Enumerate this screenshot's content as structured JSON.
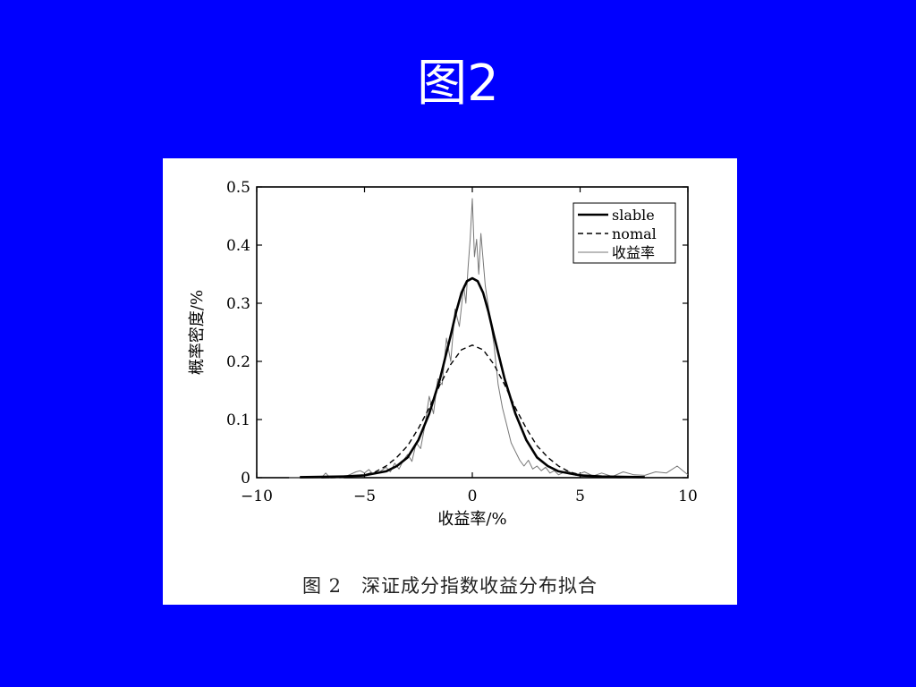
{
  "slide": {
    "title": "图2"
  },
  "figure": {
    "caption_label": "图 2",
    "caption_text": "深证成分指数收益分布拟合"
  },
  "chart_data": {
    "type": "line",
    "xlabel": "收益率/%",
    "ylabel": "概率密度/%",
    "xlim": [
      -10,
      10
    ],
    "ylim": [
      0,
      0.5
    ],
    "x_ticks": [
      -10,
      -5,
      0,
      5,
      10
    ],
    "x_tick_labels": [
      "−10",
      "−5",
      "0",
      "5",
      "10"
    ],
    "y_ticks": [
      0,
      0.1,
      0.2,
      0.3,
      0.4,
      0.5
    ],
    "y_tick_labels": [
      "0",
      "0.1",
      "0.2",
      "0.3",
      "0.4",
      "0.5"
    ],
    "grid": false,
    "legend_position": "top-right",
    "colors": {
      "axis": "#000000",
      "stable": "#000000",
      "normal": "#000000",
      "empirical": "#777777"
    },
    "series": [
      {
        "name": "slable",
        "style": "solid-thick",
        "x": [
          -8,
          -6,
          -5,
          -4,
          -3.5,
          -3,
          -2.5,
          -2,
          -1.5,
          -1,
          -0.75,
          -0.5,
          -0.25,
          0,
          0.25,
          0.5,
          0.75,
          1,
          1.5,
          2,
          2.5,
          3,
          3.5,
          4,
          5,
          6,
          8
        ],
        "y": [
          0.001,
          0.002,
          0.004,
          0.011,
          0.02,
          0.035,
          0.065,
          0.11,
          0.17,
          0.245,
          0.285,
          0.318,
          0.338,
          0.343,
          0.338,
          0.318,
          0.285,
          0.245,
          0.17,
          0.11,
          0.065,
          0.035,
          0.02,
          0.011,
          0.004,
          0.002,
          0.001
        ]
      },
      {
        "name": "nomal",
        "style": "dashed",
        "x": [
          -7,
          -6,
          -5,
          -4.5,
          -4,
          -3.5,
          -3,
          -2.5,
          -2,
          -1.5,
          -1,
          -0.5,
          0,
          0.5,
          1,
          1.5,
          2,
          2.5,
          3,
          3.5,
          4,
          4.5,
          5,
          6,
          7
        ],
        "y": [
          0.0,
          0.001,
          0.005,
          0.01,
          0.02,
          0.035,
          0.055,
          0.085,
          0.12,
          0.16,
          0.195,
          0.22,
          0.228,
          0.22,
          0.195,
          0.16,
          0.12,
          0.085,
          0.055,
          0.035,
          0.02,
          0.01,
          0.005,
          0.001,
          0.0
        ]
      },
      {
        "name": "收益率",
        "style": "thin",
        "x": [
          -8.5,
          -7,
          -6.8,
          -6.6,
          -6,
          -5.4,
          -5.2,
          -5.0,
          -4.8,
          -4.6,
          -4.3,
          -4.0,
          -3.8,
          -3.6,
          -3.4,
          -3.2,
          -3.0,
          -2.8,
          -2.6,
          -2.4,
          -2.2,
          -2.0,
          -1.8,
          -1.6,
          -1.4,
          -1.2,
          -1.0,
          -0.8,
          -0.6,
          -0.4,
          -0.3,
          -0.2,
          -0.1,
          0.0,
          0.1,
          0.2,
          0.3,
          0.4,
          0.6,
          0.8,
          1.0,
          1.2,
          1.4,
          1.6,
          1.8,
          2.0,
          2.2,
          2.4,
          2.6,
          2.8,
          3.0,
          3.2,
          3.4,
          3.6,
          3.8,
          4.0,
          4.4,
          4.8,
          5.2,
          5.6,
          6.0,
          6.5,
          7.0,
          7.5,
          8.0,
          8.5,
          9.0,
          9.5,
          10.0
        ],
        "y": [
          0.0,
          0.0,
          0.008,
          0.0,
          0.0,
          0.01,
          0.012,
          0.008,
          0.014,
          0.006,
          0.01,
          0.018,
          0.01,
          0.025,
          0.015,
          0.03,
          0.04,
          0.028,
          0.06,
          0.05,
          0.09,
          0.14,
          0.11,
          0.17,
          0.16,
          0.24,
          0.2,
          0.29,
          0.26,
          0.33,
          0.3,
          0.36,
          0.41,
          0.48,
          0.38,
          0.41,
          0.35,
          0.42,
          0.33,
          0.28,
          0.23,
          0.16,
          0.12,
          0.09,
          0.06,
          0.045,
          0.03,
          0.02,
          0.03,
          0.015,
          0.02,
          0.012,
          0.018,
          0.008,
          0.012,
          0.005,
          0.012,
          0.004,
          0.01,
          0.003,
          0.008,
          0.002,
          0.01,
          0.005,
          0.004,
          0.01,
          0.008,
          0.02,
          0.005
        ]
      }
    ]
  }
}
